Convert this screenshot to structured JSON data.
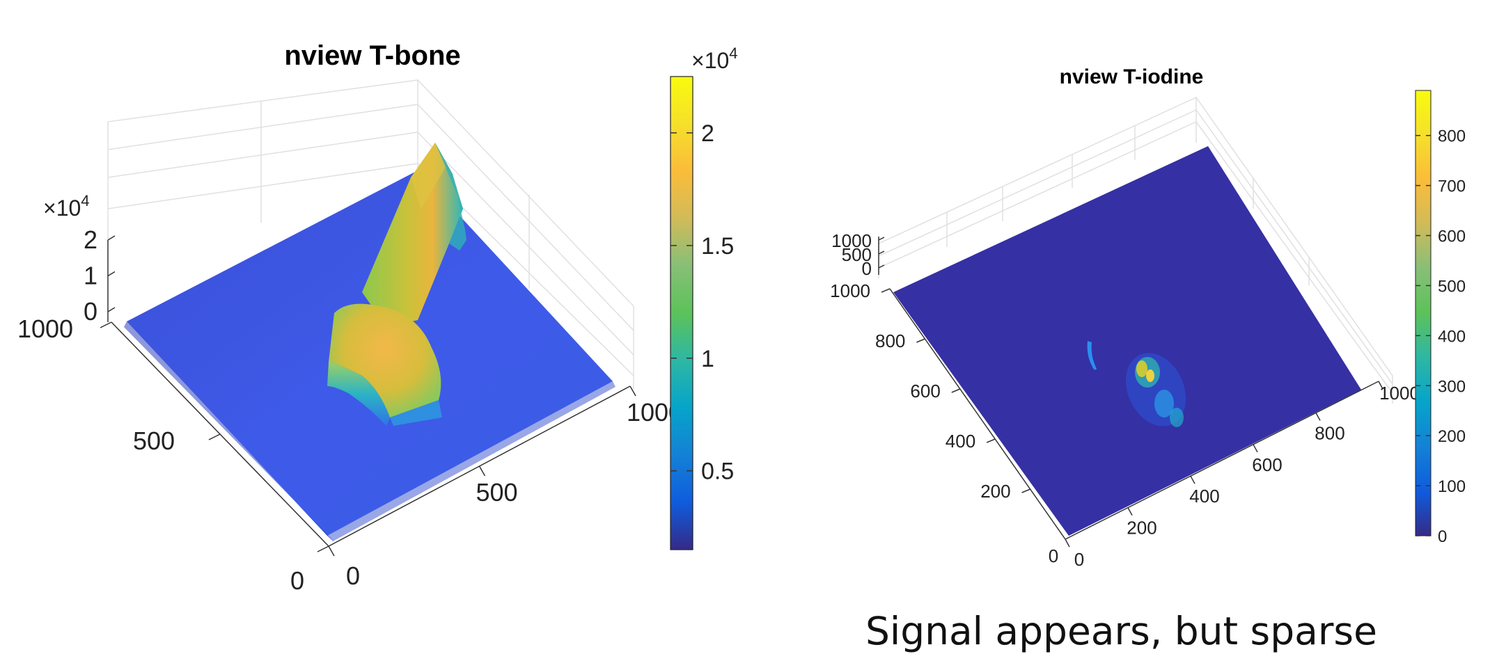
{
  "caption": "Signal appears, but sparse",
  "chart_data": [
    {
      "type": "surface",
      "title": "nview T-bone",
      "x_ticks": [
        "0",
        "500",
        "1000"
      ],
      "y_ticks": [
        "0",
        "500",
        "1000"
      ],
      "z_ticks": [
        "0",
        "1",
        "2"
      ],
      "z_exponent": "10",
      "z_exponent_power": "4",
      "zlim": [
        0,
        20000
      ],
      "colorbar": {
        "ticks": [
          "0.5",
          "1",
          "1.5",
          "2"
        ],
        "tick_values": [
          5000,
          10000,
          15000,
          20000
        ],
        "range": [
          1500,
          22500
        ],
        "exponent": "10",
        "exponent_power": "4"
      },
      "grid": true
    },
    {
      "type": "surface",
      "title": "nview T-iodine",
      "x_ticks": [
        "0",
        "200",
        "400",
        "600",
        "800",
        "1000"
      ],
      "y_ticks": [
        "200",
        "400",
        "600",
        "800",
        "1000"
      ],
      "origin_tick": "0",
      "z_ticks": [
        "0",
        "500",
        "1000"
      ],
      "zlim": [
        0,
        1000
      ],
      "colorbar": {
        "ticks": [
          "0",
          "100",
          "200",
          "300",
          "400",
          "500",
          "600",
          "700",
          "800"
        ],
        "tick_values": [
          0,
          100,
          200,
          300,
          400,
          500,
          600,
          700,
          800
        ],
        "range": [
          0,
          890
        ]
      },
      "grid": true
    }
  ]
}
